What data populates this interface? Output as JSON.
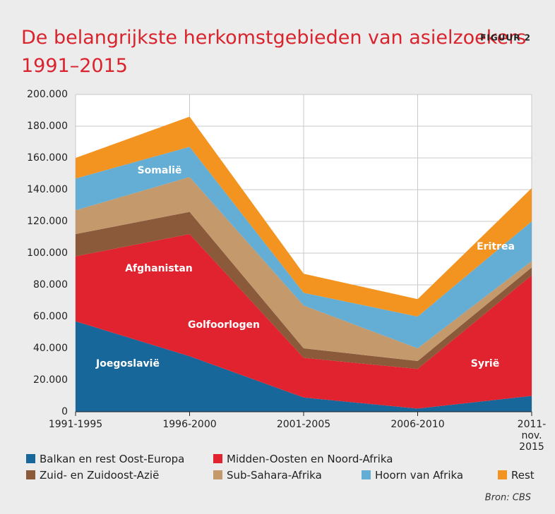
{
  "chart_data": {
    "type": "stacked_area",
    "title": "De belangrijkste herkomstgebieden van asielzoekers 1991–2015",
    "figure_label": "FIGUUR 2",
    "source": "Bron: CBS",
    "categories": [
      "1991-1995",
      "1996-2000",
      "2001-2005",
      "2006-2010",
      "2011-\nnov.\n2015"
    ],
    "series": [
      {
        "name": "Balkan en rest Oost-Europa",
        "color": "#17679a",
        "values": [
          57000,
          35000,
          9000,
          2000,
          10000
        ]
      },
      {
        "name": "Midden-Oosten en Noord-Afrika",
        "color": "#e1222f",
        "values": [
          41000,
          77000,
          25000,
          25000,
          76000
        ]
      },
      {
        "name": "Zuid- en Zuidoost-Azië",
        "color": "#8a5a3b",
        "values": [
          14000,
          14000,
          6000,
          5000,
          5000
        ]
      },
      {
        "name": "Sub-Sahara-Afrika",
        "color": "#c4996c",
        "values": [
          15000,
          22000,
          27000,
          8000,
          4000
        ]
      },
      {
        "name": "Hoorn van Afrika",
        "color": "#64aed6",
        "values": [
          20000,
          19000,
          8000,
          20000,
          25000
        ]
      },
      {
        "name": "Rest",
        "color": "#f39420",
        "values": [
          13000,
          19000,
          12000,
          11000,
          21000
        ]
      }
    ],
    "annotations": [
      "Somalië",
      "Afghanistan",
      "Golfoorlogen",
      "Joegoslavië",
      "Syrië",
      "Eritrea"
    ],
    "ylim": [
      0,
      200000
    ],
    "yticks": [
      0,
      {
        "value": 20000,
        "label": "20.000"
      },
      {
        "value": 40000,
        "label": "40.000"
      },
      {
        "value": 60000,
        "label": "60.000"
      },
      {
        "value": 80000,
        "label": "80.000"
      },
      {
        "value": 100000,
        "label": "100.000"
      },
      {
        "value": 120000,
        "label": "120.000"
      },
      {
        "value": 140000,
        "label": "140.000"
      },
      {
        "value": 160000,
        "label": "160.000"
      },
      {
        "value": 180000,
        "label": "180.000"
      },
      {
        "value": 200000,
        "label": "200.000"
      }
    ],
    "grid": true
  }
}
